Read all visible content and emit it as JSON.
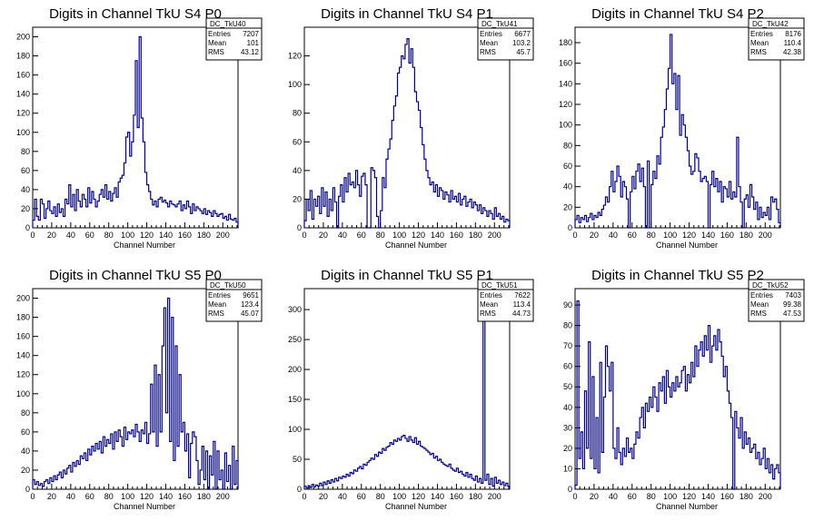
{
  "chart_data": [
    {
      "type": "histogram",
      "title": "Digits in Channel TkU S4 P0",
      "xlabel": "Channel Number",
      "ylabel": "",
      "xlim": [
        0,
        216
      ],
      "ylim": [
        0,
        210
      ],
      "xticks": [
        0,
        20,
        40,
        60,
        80,
        100,
        120,
        140,
        160,
        180,
        200
      ],
      "yticks": [
        20,
        40,
        60,
        80,
        100,
        120,
        140,
        160,
        180,
        200
      ],
      "line_color": "#000080",
      "bin_width": 2,
      "stats": {
        "name": "DC_TkU40",
        "entries": "7207",
        "mean": "101",
        "rms": "43.12"
      },
      "values": [
        8,
        30,
        12,
        8,
        30,
        25,
        10,
        20,
        28,
        18,
        15,
        22,
        12,
        25,
        16,
        20,
        12,
        30,
        25,
        45,
        22,
        35,
        18,
        40,
        28,
        22,
        35,
        30,
        22,
        42,
        26,
        38,
        30,
        22,
        28,
        35,
        40,
        32,
        45,
        30,
        38,
        28,
        36,
        42,
        32,
        48,
        52,
        55,
        68,
        95,
        100,
        75,
        90,
        118,
        175,
        105,
        200,
        115,
        90,
        58,
        45,
        38,
        30,
        24,
        28,
        22,
        30,
        32,
        27,
        29,
        26,
        22,
        28,
        25,
        24,
        22,
        25,
        28,
        18,
        24,
        20,
        28,
        22,
        15,
        25,
        18,
        22,
        20,
        18,
        15,
        20,
        14,
        18,
        16,
        12,
        18,
        15,
        12,
        14,
        15,
        10,
        12,
        8,
        14,
        9,
        8,
        10,
        6,
        8
      ]
    },
    {
      "type": "histogram",
      "title": "Digits in Channel TkU S4 P1",
      "xlabel": "Channel Number",
      "ylabel": "",
      "xlim": [
        0,
        216
      ],
      "ylim": [
        0,
        140
      ],
      "xticks": [
        0,
        20,
        40,
        60,
        80,
        100,
        120,
        140,
        160,
        180,
        200
      ],
      "yticks": [
        20,
        40,
        60,
        80,
        100,
        120
      ],
      "line_color": "#000080",
      "bin_width": 2,
      "stats": {
        "name": "DC_TkU41",
        "entries": "6677",
        "mean": "103.2",
        "rms": "45.7"
      },
      "values": [
        5,
        20,
        12,
        26,
        6,
        20,
        15,
        22,
        10,
        28,
        15,
        25,
        8,
        20,
        12,
        28,
        18,
        0,
        22,
        30,
        18,
        35,
        25,
        38,
        30,
        32,
        28,
        40,
        30,
        22,
        36,
        38,
        30,
        0,
        0,
        42,
        40,
        35,
        8,
        0,
        12,
        35,
        28,
        48,
        55,
        62,
        75,
        85,
        92,
        108,
        112,
        120,
        118,
        128,
        132,
        115,
        125,
        112,
        95,
        88,
        82,
        70,
        58,
        48,
        40,
        35,
        30,
        32,
        25,
        30,
        22,
        28,
        26,
        20,
        25,
        23,
        18,
        26,
        20,
        22,
        18,
        24,
        16,
        20,
        22,
        15,
        18,
        20,
        14,
        18,
        16,
        12,
        16,
        10,
        14,
        12,
        8,
        12,
        10,
        6,
        14,
        8,
        10,
        6,
        8,
        4,
        6,
        5
      ]
    },
    {
      "type": "histogram",
      "title": "Digits in Channel TkU S4 P2",
      "xlabel": "Channel Number",
      "ylabel": "",
      "xlim": [
        0,
        216
      ],
      "ylim": [
        0,
        195
      ],
      "xticks": [
        0,
        20,
        40,
        60,
        80,
        100,
        120,
        140,
        160,
        180,
        200
      ],
      "yticks": [
        20,
        40,
        60,
        80,
        100,
        120,
        140,
        160,
        180
      ],
      "line_color": "#000080",
      "bin_width": 2,
      "stats": {
        "name": "DC_TkU42",
        "entries": "8176",
        "mean": "110.4",
        "rms": "42.38"
      },
      "values": [
        8,
        12,
        5,
        10,
        8,
        12,
        6,
        10,
        14,
        8,
        12,
        10,
        15,
        12,
        18,
        22,
        30,
        25,
        40,
        55,
        35,
        45,
        60,
        50,
        30,
        45,
        40,
        28,
        0,
        35,
        50,
        38,
        55,
        62,
        45,
        58,
        40,
        0,
        65,
        0,
        42,
        55,
        48,
        70,
        62,
        88,
        98,
        115,
        135,
        155,
        188,
        140,
        150,
        115,
        148,
        90,
        110,
        100,
        88,
        75,
        60,
        52,
        55,
        72,
        68,
        55,
        45,
        48,
        50,
        45,
        0,
        42,
        55,
        40,
        48,
        35,
        45,
        25,
        40,
        38,
        30,
        45,
        28,
        35,
        30,
        88,
        40,
        25,
        0,
        28,
        32,
        20,
        42,
        30,
        18,
        25,
        8,
        20,
        10,
        15,
        12,
        20,
        8,
        30,
        25,
        28,
        18,
        5
      ]
    },
    {
      "type": "histogram",
      "title": "Digits in Channel TkU S5 P0",
      "xlabel": "Channel Number",
      "ylabel": "",
      "xlim": [
        0,
        216
      ],
      "ylim": [
        0,
        210
      ],
      "xticks": [
        0,
        20,
        40,
        60,
        80,
        100,
        120,
        140,
        160,
        180,
        200
      ],
      "yticks": [
        20,
        40,
        60,
        80,
        100,
        120,
        140,
        160,
        180,
        200
      ],
      "line_color": "#000080",
      "bin_width": 2,
      "stats": {
        "name": "DC_TkU50",
        "entries": "9651",
        "mean": "123.4",
        "rms": "45.07"
      },
      "values": [
        10,
        5,
        8,
        4,
        6,
        3,
        8,
        10,
        6,
        12,
        8,
        14,
        10,
        15,
        18,
        12,
        20,
        16,
        22,
        25,
        18,
        28,
        24,
        30,
        26,
        35,
        32,
        38,
        30,
        42,
        36,
        45,
        40,
        48,
        42,
        50,
        38,
        55,
        45,
        52,
        48,
        58,
        42,
        60,
        50,
        62,
        55,
        45,
        65,
        52,
        60,
        58,
        62,
        55,
        68,
        60,
        50,
        62,
        58,
        70,
        48,
        58,
        110,
        60,
        130,
        45,
        120,
        60,
        150,
        190,
        80,
        200,
        50,
        180,
        30,
        150,
        45,
        120,
        60,
        70,
        40,
        58,
        12,
        48,
        60,
        55,
        30,
        5,
        20,
        45,
        10,
        40,
        0,
        35,
        15,
        50,
        0,
        40,
        10,
        20,
        0,
        38,
        8,
        25,
        0,
        45,
        5,
        30
      ]
    },
    {
      "type": "histogram",
      "title": "Digits in Channel TkU S5 P1",
      "xlabel": "Channel Number",
      "ylabel": "",
      "xlim": [
        0,
        216
      ],
      "ylim": [
        0,
        335
      ],
      "xticks": [
        0,
        20,
        40,
        60,
        80,
        100,
        120,
        140,
        160,
        180,
        200
      ],
      "yticks": [
        50,
        100,
        150,
        200,
        250,
        300
      ],
      "line_color": "#000080",
      "bin_width": 2,
      "stats": {
        "name": "DC_TkU51",
        "entries": "7622",
        "mean": "113.4",
        "rms": "44.73"
      },
      "values": [
        5,
        2,
        6,
        3,
        8,
        4,
        7,
        5,
        10,
        6,
        12,
        8,
        14,
        10,
        16,
        12,
        18,
        14,
        20,
        18,
        22,
        20,
        25,
        22,
        28,
        26,
        32,
        30,
        35,
        38,
        34,
        42,
        40,
        45,
        48,
        52,
        50,
        58,
        55,
        62,
        60,
        68,
        65,
        70,
        72,
        78,
        75,
        82,
        80,
        85,
        82,
        88,
        90,
        85,
        80,
        88,
        82,
        78,
        86,
        75,
        80,
        72,
        70,
        68,
        65,
        62,
        58,
        60,
        52,
        55,
        48,
        50,
        45,
        42,
        40,
        38,
        42,
        35,
        32,
        30,
        35,
        28,
        30,
        25,
        22,
        28,
        20,
        25,
        18,
        15,
        22,
        12,
        18,
        10,
        300,
        15,
        25,
        8,
        18,
        5,
        20,
        10,
        15,
        8,
        12,
        6,
        10,
        5
      ]
    },
    {
      "type": "histogram",
      "title": "Digits in Channel TkU S5 P2",
      "xlabel": "Channel Number",
      "ylabel": "",
      "xlim": [
        0,
        216
      ],
      "ylim": [
        0,
        98
      ],
      "xticks": [
        0,
        20,
        40,
        60,
        80,
        100,
        120,
        140,
        160,
        180,
        200
      ],
      "yticks": [
        10,
        20,
        30,
        40,
        50,
        60,
        70,
        80,
        90
      ],
      "line_color": "#000080",
      "bin_width": 2,
      "stats": {
        "name": "DC_TkU52",
        "entries": "7403",
        "mean": "99.38",
        "rms": "47.53"
      },
      "values": [
        2,
        92,
        15,
        28,
        10,
        48,
        20,
        72,
        15,
        55,
        10,
        35,
        8,
        62,
        18,
        45,
        70,
        60,
        48,
        62,
        20,
        15,
        30,
        18,
        12,
        20,
        16,
        25,
        18,
        20,
        15,
        22,
        28,
        25,
        35,
        40,
        30,
        42,
        38,
        45,
        40,
        50,
        45,
        38,
        52,
        48,
        55,
        42,
        58,
        50,
        45,
        52,
        48,
        55,
        50,
        52,
        58,
        60,
        48,
        56,
        52,
        62,
        55,
        70,
        60,
        68,
        72,
        65,
        75,
        68,
        80,
        62,
        70,
        75,
        68,
        78,
        72,
        65,
        55,
        60,
        48,
        42,
        35,
        0,
        38,
        30,
        25,
        35,
        20,
        28,
        22,
        25,
        18,
        20,
        22,
        15,
        18,
        12,
        15,
        20,
        10,
        15,
        8,
        12,
        5,
        10,
        12,
        8
      ]
    }
  ]
}
